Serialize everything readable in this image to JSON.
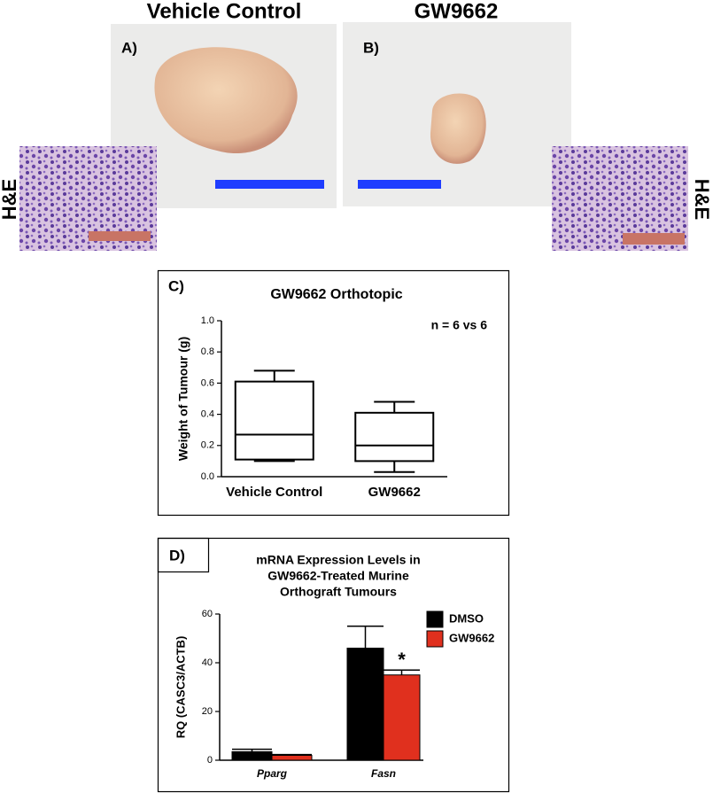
{
  "panels": {
    "a": {
      "label": "A)",
      "title": "Vehicle Control",
      "stain": "H&E"
    },
    "b": {
      "label": "B)",
      "title": "GW9662",
      "stain": "H&E"
    }
  },
  "chart_data": [
    {
      "type": "box",
      "panel_label": "C)",
      "title": "GW9662 Orthotopic",
      "annotation": "n = 6 vs 6",
      "y_label": "Weight of Tumour (g)",
      "categories": [
        "Vehicle Control",
        "GW9662"
      ],
      "boxes": [
        {
          "min": 0.1,
          "q1": 0.11,
          "median": 0.27,
          "q3": 0.61,
          "max": 0.68
        },
        {
          "min": 0.03,
          "q1": 0.1,
          "median": 0.2,
          "q3": 0.41,
          "max": 0.48
        }
      ],
      "ylim": [
        0,
        1.0
      ],
      "yticks": [
        {
          "value": 0,
          "label": "0.0"
        },
        {
          "value": 0.2,
          "label": "0.2"
        },
        {
          "value": 0.4,
          "label": "0.4"
        },
        {
          "value": 0.6,
          "label": "0.6"
        },
        {
          "value": 0.8,
          "label": "0.8"
        },
        {
          "value": 1.0,
          "label": "1.0"
        }
      ]
    },
    {
      "type": "bar",
      "panel_label": "D)",
      "title": [
        "mRNA Expression Levels in",
        "GW9662-Treated Murine",
        "Orthograft Tumours"
      ],
      "y_label": "RQ (CASC3/ACTB)",
      "categories": [
        "Pparg",
        "Fasn"
      ],
      "series": [
        {
          "name": "DMSO",
          "color": "#000000",
          "values": [
            3.5,
            46
          ],
          "errors": [
            1,
            9
          ]
        },
        {
          "name": "GW9662",
          "color": "#e0301e",
          "values": [
            2,
            35
          ],
          "errors": [
            0.3,
            2
          ],
          "significance": [
            null,
            "*"
          ]
        }
      ],
      "ylim": [
        0,
        60
      ],
      "yticks": [
        0,
        20,
        40,
        60
      ]
    }
  ]
}
